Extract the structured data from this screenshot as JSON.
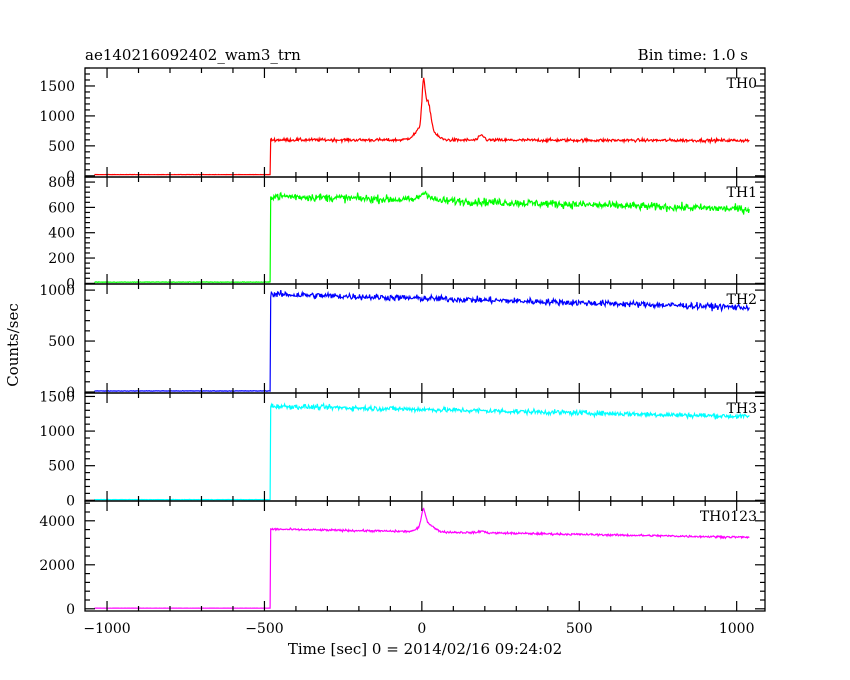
{
  "chart_data": {
    "type": "line",
    "title": "ae140216092402_wam3_trn",
    "bin_time_label": "Bin time: 1.0 s",
    "xlabel": "Time [sec] 0 = 2014/02/16 09:24:02",
    "ylabel": "Counts/sec",
    "xlim": [
      -1070,
      1090
    ],
    "x_ticks": [
      -1000,
      -500,
      0,
      500,
      1000
    ],
    "x_tick_labels": [
      "−1000",
      "−500",
      "0",
      "500",
      "1000"
    ],
    "panels": [
      {
        "name": "TH0",
        "color": "#ff0000",
        "ylim": [
          -20,
          1800
        ],
        "y_ticks": [
          0,
          500,
          1000,
          1500
        ],
        "y_tick_labels": [
          "0",
          "500",
          "1000",
          "1500"
        ],
        "baseline": 20,
        "onset": -480,
        "level_start": 600,
        "level_end": 590,
        "noise": 25,
        "peaks": [
          {
            "x": 5,
            "height": 700,
            "width": 5
          },
          {
            "x": 20,
            "height": 400,
            "width": 8
          },
          {
            "x": 10,
            "height": 250,
            "width": 25
          },
          {
            "x": 190,
            "height": 80,
            "width": 8
          }
        ]
      },
      {
        "name": "TH1",
        "color": "#00ff00",
        "ylim": [
          -5,
          840
        ],
        "y_ticks": [
          0,
          200,
          400,
          600,
          800
        ],
        "y_tick_labels": [
          "0",
          "200",
          "400",
          "600",
          "800"
        ],
        "baseline": 10,
        "onset": -480,
        "level_start": 690,
        "level_end": 585,
        "noise": 30,
        "peaks": [
          {
            "x": 10,
            "height": 60,
            "width": 15
          }
        ]
      },
      {
        "name": "TH2",
        "color": "#0000ff",
        "ylim": [
          -10,
          1060
        ],
        "y_ticks": [
          0,
          500,
          1000
        ],
        "y_tick_labels": [
          "0",
          "500",
          "1000"
        ],
        "baseline": 10,
        "onset": -480,
        "level_start": 960,
        "level_end": 830,
        "noise": 30,
        "peaks": []
      },
      {
        "name": "TH3",
        "color": "#00ffff",
        "ylim": [
          -10,
          1550
        ],
        "y_ticks": [
          0,
          500,
          1000,
          1500
        ],
        "y_tick_labels": [
          "0",
          "500",
          "1000",
          "1500"
        ],
        "baseline": 10,
        "onset": -480,
        "level_start": 1360,
        "level_end": 1210,
        "noise": 35,
        "peaks": []
      },
      {
        "name": "TH0123",
        "color": "#ff00ff",
        "ylim": [
          -100,
          4900
        ],
        "y_ticks": [
          0,
          2000,
          4000
        ],
        "y_tick_labels": [
          "0",
          "2000",
          "4000"
        ],
        "baseline": 30,
        "onset": -480,
        "level_start": 3620,
        "level_end": 3250,
        "noise": 45,
        "peaks": [
          {
            "x": 5,
            "height": 700,
            "width": 6
          },
          {
            "x": 15,
            "height": 400,
            "width": 20
          },
          {
            "x": 190,
            "height": 80,
            "width": 8
          }
        ]
      }
    ]
  }
}
